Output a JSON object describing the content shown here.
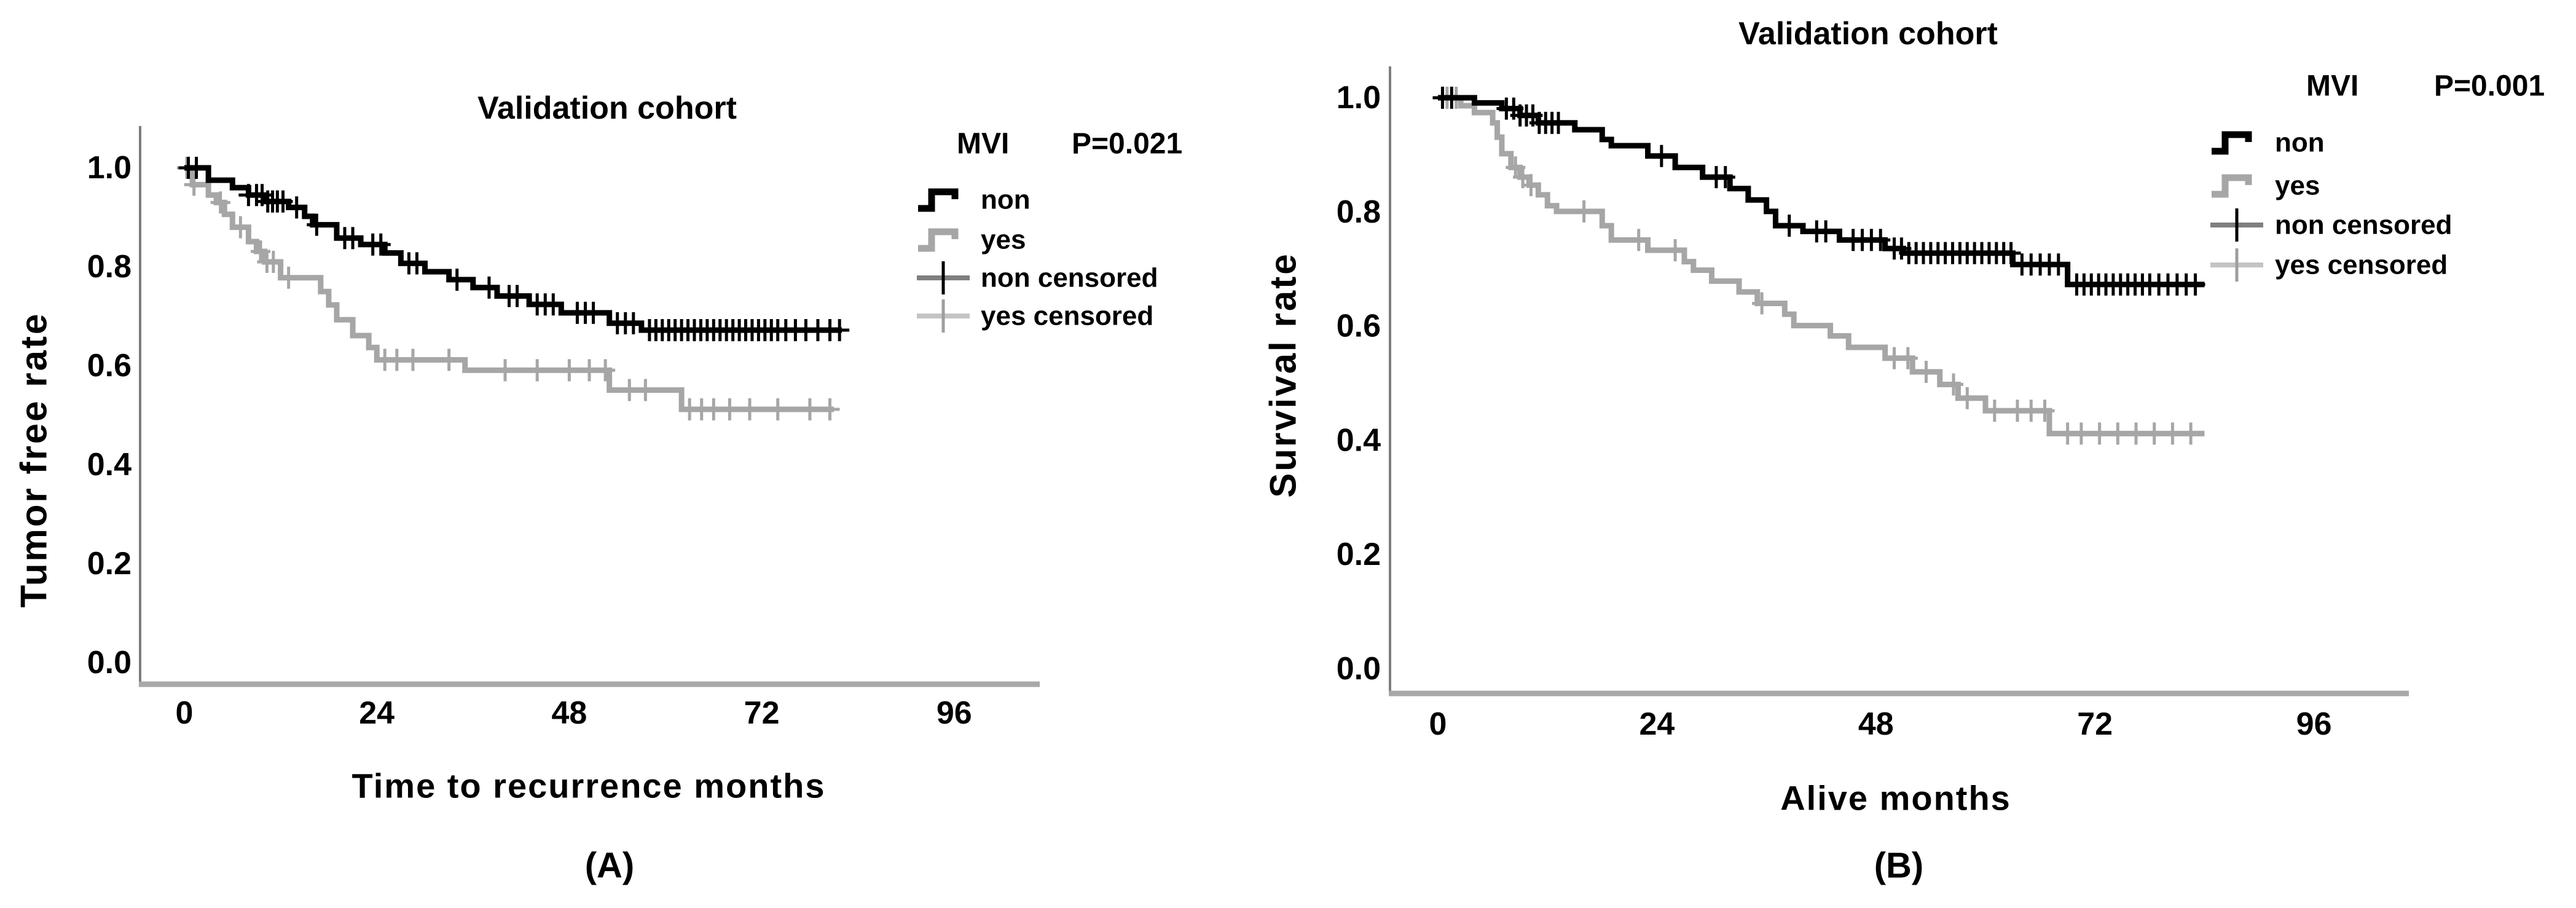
{
  "figure": {
    "background": "#ffffff",
    "text_color": "#000000",
    "axis_line_color": "#7d7d7d",
    "baseline_color": "#a8a8a8"
  },
  "chart_data": [
    {
      "id": "A",
      "type": "line",
      "subtype": "kaplan-meier-step",
      "panel_letter": "(A)",
      "title": "Validation cohort",
      "mvi_label": "MVI",
      "p_value": "P=0.021",
      "grid": false,
      "legend_position": "right-inside",
      "x_axis": {
        "label": "Time to recurrence months",
        "ticks": [
          0,
          24,
          48,
          72,
          96
        ],
        "range": [
          0,
          106
        ]
      },
      "y_axis": {
        "label": "Tumor free rate",
        "ticks": [
          "1.0",
          "0.8",
          "0.6",
          "0.4",
          "0.2",
          "0.0"
        ],
        "range": [
          0.0,
          1.0
        ]
      },
      "legend": [
        {
          "label": "non",
          "glyph": "step",
          "color": "#000000"
        },
        {
          "label": "yes",
          "glyph": "step",
          "color": "#a6a6a6"
        },
        {
          "label": "non censored",
          "glyph": "plus",
          "color": "#000000",
          "bar": "#7f7f7f"
        },
        {
          "label": "yes censored",
          "glyph": "plus",
          "color": "#9e9e9e",
          "bar": "#c4c4c4"
        }
      ],
      "series": [
        {
          "name": "yes",
          "color": "#a6a6a6",
          "end": 81,
          "steps": [
            [
              0,
              1.0
            ],
            [
              1,
              0.966
            ],
            [
              3,
              0.945
            ],
            [
              4,
              0.93
            ],
            [
              5,
              0.906
            ],
            [
              6,
              0.88
            ],
            [
              8,
              0.851
            ],
            [
              9,
              0.831
            ],
            [
              10,
              0.81
            ],
            [
              12,
              0.778
            ],
            [
              17,
              0.75
            ],
            [
              18,
              0.723
            ],
            [
              19,
              0.693
            ],
            [
              21,
              0.661
            ],
            [
              23,
              0.637
            ],
            [
              24,
              0.612
            ],
            [
              35,
              0.591
            ],
            [
              53,
              0.551
            ],
            [
              62,
              0.512
            ]
          ],
          "censors": [
            0.3,
            1.2,
            4.5,
            7,
            9.5,
            10.3,
            11.1,
            13,
            25,
            26.5,
            28.5,
            33,
            40,
            44,
            48,
            50.5,
            52.5,
            55.5,
            57.5,
            63,
            64.5,
            66,
            68,
            70.5,
            74,
            78,
            80.5
          ]
        },
        {
          "name": "non",
          "color": "#000000",
          "end": 82,
          "steps": [
            [
              0,
              1.0
            ],
            [
              3,
              0.975
            ],
            [
              6,
              0.96
            ],
            [
              8,
              0.945
            ],
            [
              10,
              0.932
            ],
            [
              13,
              0.92
            ],
            [
              15,
              0.902
            ],
            [
              16,
              0.885
            ],
            [
              19,
              0.858
            ],
            [
              22,
              0.845
            ],
            [
              25,
              0.828
            ],
            [
              27,
              0.807
            ],
            [
              30,
              0.79
            ],
            [
              33,
              0.774
            ],
            [
              36,
              0.758
            ],
            [
              39,
              0.741
            ],
            [
              43,
              0.724
            ],
            [
              47,
              0.707
            ],
            [
              53,
              0.686
            ],
            [
              57,
              0.672
            ]
          ],
          "censors": [
            0.5,
            1.5,
            8,
            9,
            9.7,
            10.4,
            11,
            11.6,
            12.3,
            14,
            16.5,
            20,
            21,
            23.5,
            24.5,
            28,
            29,
            34,
            38,
            40.5,
            41.5,
            44,
            45,
            46,
            49,
            50,
            51,
            54,
            55,
            56,
            58,
            58.8,
            59.6,
            60.4,
            61.2,
            62,
            62.8,
            63.6,
            64.4,
            65.2,
            66,
            66.8,
            67.6,
            68.4,
            69.2,
            70,
            70.8,
            71.6,
            72.4,
            73.2,
            74,
            75,
            76.2,
            77.5,
            79,
            80.5,
            81.7
          ]
        }
      ]
    },
    {
      "id": "B",
      "type": "line",
      "subtype": "kaplan-meier-step",
      "panel_letter": "(B)",
      "title": "Validation cohort",
      "mvi_label": "MVI",
      "p_value": "P=0.001",
      "grid": false,
      "legend_position": "right-inside",
      "x_axis": {
        "label": "Alive months",
        "ticks": [
          0,
          24,
          48,
          72,
          96
        ],
        "range": [
          0,
          106
        ]
      },
      "y_axis": {
        "label": "Survival rate",
        "ticks": [
          "1.0",
          "0.8",
          "0.6",
          "0.4",
          "0.2",
          "0.0"
        ],
        "range": [
          0.0,
          1.0
        ]
      },
      "legend": [
        {
          "label": "non",
          "glyph": "step",
          "color": "#000000"
        },
        {
          "label": "yes",
          "glyph": "step",
          "color": "#a6a6a6"
        },
        {
          "label": "non censored",
          "glyph": "plus",
          "color": "#000000",
          "bar": "#7f7f7f"
        },
        {
          "label": "yes censored",
          "glyph": "plus",
          "color": "#9e9e9e",
          "bar": "#c4c4c4"
        }
      ],
      "series": [
        {
          "name": "yes",
          "color": "#a6a6a6",
          "end": 84,
          "steps": [
            [
              0,
              1.0
            ],
            [
              2.5,
              0.986
            ],
            [
              4,
              0.974
            ],
            [
              6,
              0.956
            ],
            [
              6.5,
              0.931
            ],
            [
              7,
              0.902
            ],
            [
              8,
              0.878
            ],
            [
              9,
              0.861
            ],
            [
              10,
              0.847
            ],
            [
              11,
              0.83
            ],
            [
              12,
              0.811
            ],
            [
              13,
              0.801
            ],
            [
              18,
              0.776
            ],
            [
              19,
              0.751
            ],
            [
              23,
              0.733
            ],
            [
              27,
              0.713
            ],
            [
              28,
              0.698
            ],
            [
              30,
              0.679
            ],
            [
              33,
              0.66
            ],
            [
              35,
              0.64
            ],
            [
              38,
              0.621
            ],
            [
              39,
              0.601
            ],
            [
              43,
              0.583
            ],
            [
              45,
              0.563
            ],
            [
              49,
              0.544
            ],
            [
              52,
              0.52
            ],
            [
              55,
              0.498
            ],
            [
              57,
              0.474
            ],
            [
              60,
              0.452
            ],
            [
              67,
              0.412
            ]
          ],
          "censors": [
            1,
            2,
            8.5,
            9.3,
            10.2,
            16,
            22,
            26,
            35.5,
            50,
            51.5,
            53.5,
            56.5,
            58,
            61,
            63.5,
            65,
            66.5,
            69,
            70.5,
            72.5,
            74.5,
            76.5,
            78.5,
            80.5,
            82.5
          ]
        },
        {
          "name": "non",
          "color": "#000000",
          "end": 84,
          "steps": [
            [
              0,
              1.0
            ],
            [
              4,
              0.991
            ],
            [
              7,
              0.981
            ],
            [
              9,
              0.969
            ],
            [
              11,
              0.956
            ],
            [
              15,
              0.944
            ],
            [
              18,
              0.927
            ],
            [
              19,
              0.916
            ],
            [
              23,
              0.898
            ],
            [
              26,
              0.878
            ],
            [
              29,
              0.861
            ],
            [
              32,
              0.841
            ],
            [
              34,
              0.821
            ],
            [
              36,
              0.801
            ],
            [
              37,
              0.776
            ],
            [
              40,
              0.766
            ],
            [
              44,
              0.751
            ],
            [
              49,
              0.736
            ],
            [
              51,
              0.728
            ],
            [
              63,
              0.708
            ],
            [
              69,
              0.673
            ]
          ],
          "censors": [
            0.5,
            1.5,
            7.5,
            8.3,
            9,
            9.7,
            10.4,
            11.1,
            11.8,
            12.5,
            13.2,
            24.5,
            30.5,
            31.5,
            38.5,
            41.5,
            42.5,
            45.5,
            46.5,
            47.5,
            48.5,
            50,
            50.8,
            51.6,
            52.4,
            53.2,
            54,
            54.8,
            55.6,
            56.4,
            57.2,
            58,
            58.8,
            59.6,
            60.4,
            61.2,
            62,
            62.8,
            64,
            65,
            66,
            67,
            68,
            70,
            70.8,
            71.6,
            72.4,
            73.2,
            74,
            74.8,
            75.6,
            76.4,
            77.2,
            78,
            79,
            80,
            81,
            82,
            83
          ]
        }
      ]
    }
  ]
}
